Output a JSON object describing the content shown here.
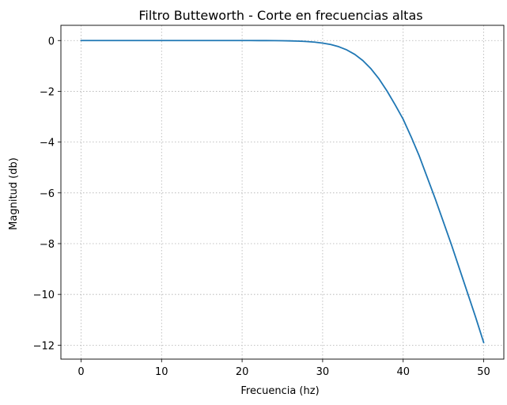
{
  "chart_data": {
    "type": "line",
    "title": "Filtro Butteworth - Corte en frecuencias altas",
    "xlabel": "Frecuencia (hz)",
    "ylabel": "Magnitud (db)",
    "xlim": [
      -2.5,
      52.5
    ],
    "ylim": [
      -12.55,
      0.6
    ],
    "xticks": [
      0,
      10,
      20,
      30,
      40,
      50
    ],
    "yticks": [
      0,
      -2,
      -4,
      -6,
      -8,
      -10,
      -12
    ],
    "xtick_labels": [
      "0",
      "10",
      "20",
      "30",
      "40",
      "50"
    ],
    "ytick_labels": [
      "0",
      "−2",
      "−4",
      "−6",
      "−8",
      "−10",
      "−12"
    ],
    "grid": true,
    "series": [
      {
        "color": "#1f77b4",
        "x": [
          0,
          2,
          4,
          6,
          8,
          10,
          12,
          14,
          16,
          18,
          20,
          21,
          22,
          23,
          24,
          25,
          26,
          27,
          28,
          29,
          30,
          31,
          32,
          33,
          34,
          35,
          36,
          37,
          38,
          39,
          40,
          41,
          42,
          43,
          44,
          45,
          46,
          47,
          48,
          49,
          50
        ],
        "y": [
          0,
          0,
          0,
          0,
          0,
          0,
          0,
          0,
          0,
          0,
          0,
          0,
          -0.001,
          -0.002,
          -0.004,
          -0.008,
          -0.013,
          -0.023,
          -0.038,
          -0.062,
          -0.1,
          -0.157,
          -0.243,
          -0.369,
          -0.547,
          -0.79,
          -1.11,
          -1.51,
          -1.99,
          -2.53,
          -3.1,
          -3.8,
          -4.55,
          -5.4,
          -6.25,
          -7.15,
          -8.05,
          -9.0,
          -9.95,
          -10.9,
          -11.9
        ]
      }
    ]
  }
}
